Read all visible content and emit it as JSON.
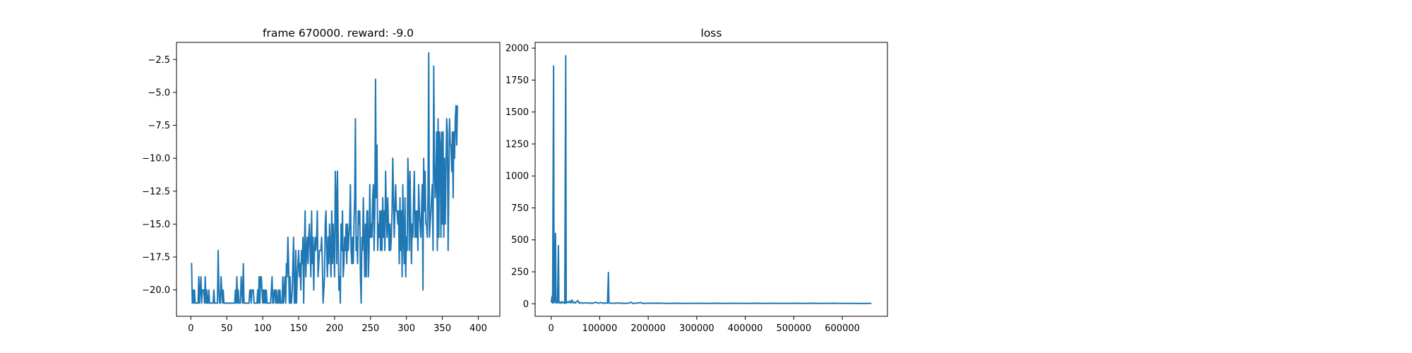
{
  "chart_data": [
    {
      "type": "line",
      "title": "frame 670000. reward: -9.0",
      "xlabel": "",
      "ylabel": "",
      "xlim": [
        -20,
        430
      ],
      "ylim": [
        -22,
        -1.2
      ],
      "xticks": [
        0,
        50,
        100,
        150,
        200,
        250,
        300,
        350,
        400
      ],
      "xtick_labels": [
        "0",
        "50",
        "100",
        "150",
        "200",
        "250",
        "300",
        "350",
        "400"
      ],
      "yticks": [
        -20,
        -17.5,
        -15,
        -12.5,
        -10,
        -7.5,
        -5,
        -2.5
      ],
      "ytick_labels": [
        "−20.0",
        "−17.5",
        "−15.0",
        "−12.5",
        "−10.0",
        "−7.5",
        "−5.0",
        "−2.5"
      ],
      "grid": false,
      "color": "#1f77b4",
      "series": [
        {
          "values": [
            -18,
            -18,
            -21,
            -20,
            -21,
            -20,
            -21,
            -21,
            -21,
            -21,
            -21,
            -19,
            -21,
            -20,
            -19,
            -21,
            -20,
            -20,
            -20,
            -21,
            -19,
            -21,
            -20,
            -21,
            -21,
            -20,
            -21,
            -21,
            -21,
            -21,
            -21,
            -21,
            -20,
            -21,
            -21,
            -21,
            -21,
            -21,
            -17,
            -20,
            -21,
            -21,
            -19,
            -20,
            -21,
            -20,
            -21,
            -21,
            -21,
            -21,
            -21,
            -21,
            -21,
            -21,
            -21,
            -21,
            -21,
            -21,
            -21,
            -21,
            -21,
            -21,
            -20,
            -21,
            -19,
            -21,
            -20,
            -21,
            -21,
            -21,
            -19,
            -20,
            -21,
            -18,
            -21,
            -21,
            -21,
            -21,
            -21,
            -21,
            -21,
            -21,
            -20,
            -20,
            -21,
            -20,
            -20,
            -20,
            -21,
            -21,
            -21,
            -21,
            -21,
            -20,
            -21,
            -19,
            -21,
            -19,
            -19,
            -20,
            -21,
            -20,
            -21,
            -20,
            -21,
            -20,
            -21,
            -21,
            -21,
            -21,
            -21,
            -21,
            -20,
            -19,
            -21,
            -21,
            -20,
            -20,
            -21,
            -20,
            -21,
            -21,
            -20,
            -21,
            -20,
            -21,
            -21,
            -21,
            -19,
            -21,
            -20,
            -19,
            -21,
            -18,
            -19,
            -16,
            -18,
            -21,
            -19,
            -21,
            -21,
            -20,
            -18,
            -16,
            -21,
            -21,
            -17,
            -21,
            -19,
            -18,
            -17,
            -19,
            -18,
            -20,
            -17,
            -18,
            -16,
            -21,
            -17,
            -14,
            -19,
            -17,
            -16,
            -18,
            -16,
            -15,
            -17,
            -19,
            -14,
            -18,
            -16,
            -20,
            -17,
            -16,
            -17,
            -16,
            -14,
            -19,
            -18,
            -17,
            -17,
            -17,
            -16,
            -18,
            -21,
            -20,
            -19,
            -15,
            -14,
            -17,
            -19,
            -16,
            -18,
            -15,
            -17,
            -19,
            -14,
            -18,
            -15,
            -17,
            -19,
            -11,
            -13,
            -18,
            -11,
            -16,
            -20,
            -19,
            -21,
            -15,
            -17,
            -14,
            -19,
            -18,
            -16,
            -17,
            -15,
            -18,
            -15,
            -17,
            -16,
            -15,
            -12,
            -17,
            -18,
            -16,
            -18,
            -15,
            -13,
            -7,
            -17,
            -16,
            -18,
            -14,
            -15,
            -14,
            -19,
            -21,
            -16,
            -17,
            -13,
            -16,
            -19,
            -15,
            -19,
            -14,
            -14,
            -19,
            -17,
            -12,
            -16,
            -15,
            -16,
            -13,
            -12,
            -17,
            -14,
            -4,
            -13,
            -9,
            -17,
            -15,
            -16,
            -14,
            -17,
            -14,
            -17,
            -13,
            -16,
            -14,
            -17,
            -11,
            -14,
            -16,
            -13,
            -15,
            -17,
            -15,
            -17,
            -16,
            -14,
            -10,
            -13,
            -16,
            -14,
            -12,
            -14,
            -14,
            -15,
            -14,
            -18,
            -13,
            -17,
            -14,
            -19,
            -12,
            -16,
            -18,
            -13,
            -19,
            -16,
            -17,
            -10,
            -12,
            -17,
            -11,
            -15,
            -18,
            -15,
            -16,
            -13,
            -11,
            -16,
            -14,
            -16,
            -14,
            -17,
            -12,
            -14,
            -15,
            -16,
            -14,
            -12,
            -20,
            -10,
            -14,
            -11,
            -15,
            -15,
            -16,
            -13,
            -2,
            -16,
            -15,
            -14,
            -13,
            -12,
            -17,
            -3,
            -10,
            -13,
            -12,
            -8,
            -17,
            -7,
            -16,
            -8,
            -9,
            -16,
            -8,
            -15,
            -8,
            -16,
            -10,
            -15,
            -11,
            -7,
            -8,
            -17,
            -12,
            -7,
            -9,
            -9,
            -11,
            -8,
            -13,
            -8,
            -10,
            -7,
            -6,
            -9,
            -6
          ]
        }
      ]
    },
    {
      "type": "line",
      "title": "loss",
      "xlabel": "",
      "ylabel": "",
      "xlim": [
        -33000,
        693000
      ],
      "ylim": [
        -98,
        2045
      ],
      "xticks": [
        0,
        100000,
        200000,
        300000,
        400000,
        500000,
        600000
      ],
      "xtick_labels": [
        "0",
        "100000",
        "200000",
        "300000",
        "400000",
        "500000",
        "600000"
      ],
      "yticks": [
        0,
        250,
        500,
        750,
        1000,
        1250,
        1500,
        1750,
        2000
      ],
      "ytick_labels": [
        "0",
        "250",
        "500",
        "750",
        "1000",
        "1250",
        "1500",
        "1750",
        "2000"
      ],
      "grid": false,
      "color": "#1f77b4",
      "series": [
        {
          "points": [
            [
              0,
              10
            ],
            [
              2000,
              60
            ],
            [
              3000,
              5
            ],
            [
              5000,
              1860
            ],
            [
              6000,
              8
            ],
            [
              7000,
              15
            ],
            [
              9000,
              550
            ],
            [
              10000,
              5
            ],
            [
              12000,
              20
            ],
            [
              13000,
              8
            ],
            [
              15000,
              455
            ],
            [
              16000,
              6
            ],
            [
              18000,
              12
            ],
            [
              20000,
              4
            ],
            [
              22000,
              18
            ],
            [
              24000,
              6
            ],
            [
              26000,
              12
            ],
            [
              28000,
              3
            ],
            [
              30000,
              1940
            ],
            [
              31000,
              5
            ],
            [
              33000,
              15
            ],
            [
              35000,
              8
            ],
            [
              38000,
              22
            ],
            [
              40000,
              5
            ],
            [
              43000,
              30
            ],
            [
              45000,
              6
            ],
            [
              48000,
              14
            ],
            [
              50000,
              5
            ],
            [
              55000,
              25
            ],
            [
              58000,
              4
            ],
            [
              62000,
              10
            ],
            [
              65000,
              3
            ],
            [
              70000,
              8
            ],
            [
              75000,
              4
            ],
            [
              80000,
              6
            ],
            [
              85000,
              3
            ],
            [
              92000,
              12
            ],
            [
              97000,
              4
            ],
            [
              102000,
              10
            ],
            [
              107000,
              3
            ],
            [
              112000,
              7
            ],
            [
              116000,
              4
            ],
            [
              118000,
              245
            ],
            [
              119000,
              6
            ],
            [
              122000,
              5
            ],
            [
              130000,
              4
            ],
            [
              140000,
              6
            ],
            [
              150000,
              3
            ],
            [
              160000,
              5
            ],
            [
              165000,
              12
            ],
            [
              168000,
              3
            ],
            [
              175000,
              4
            ],
            [
              185000,
              10
            ],
            [
              188000,
              3
            ],
            [
              200000,
              4
            ],
            [
              220000,
              5
            ],
            [
              240000,
              3
            ],
            [
              260000,
              4
            ],
            [
              280000,
              3
            ],
            [
              300000,
              4
            ],
            [
              320000,
              3
            ],
            [
              340000,
              4
            ],
            [
              360000,
              3
            ],
            [
              380000,
              4
            ],
            [
              400000,
              3
            ],
            [
              420000,
              4
            ],
            [
              440000,
              3
            ],
            [
              460000,
              4
            ],
            [
              480000,
              3
            ],
            [
              500000,
              4
            ],
            [
              520000,
              3
            ],
            [
              540000,
              4
            ],
            [
              560000,
              3
            ],
            [
              580000,
              4
            ],
            [
              600000,
              3
            ],
            [
              620000,
              3
            ],
            [
              640000,
              2
            ],
            [
              660000,
              3
            ]
          ]
        }
      ]
    }
  ]
}
